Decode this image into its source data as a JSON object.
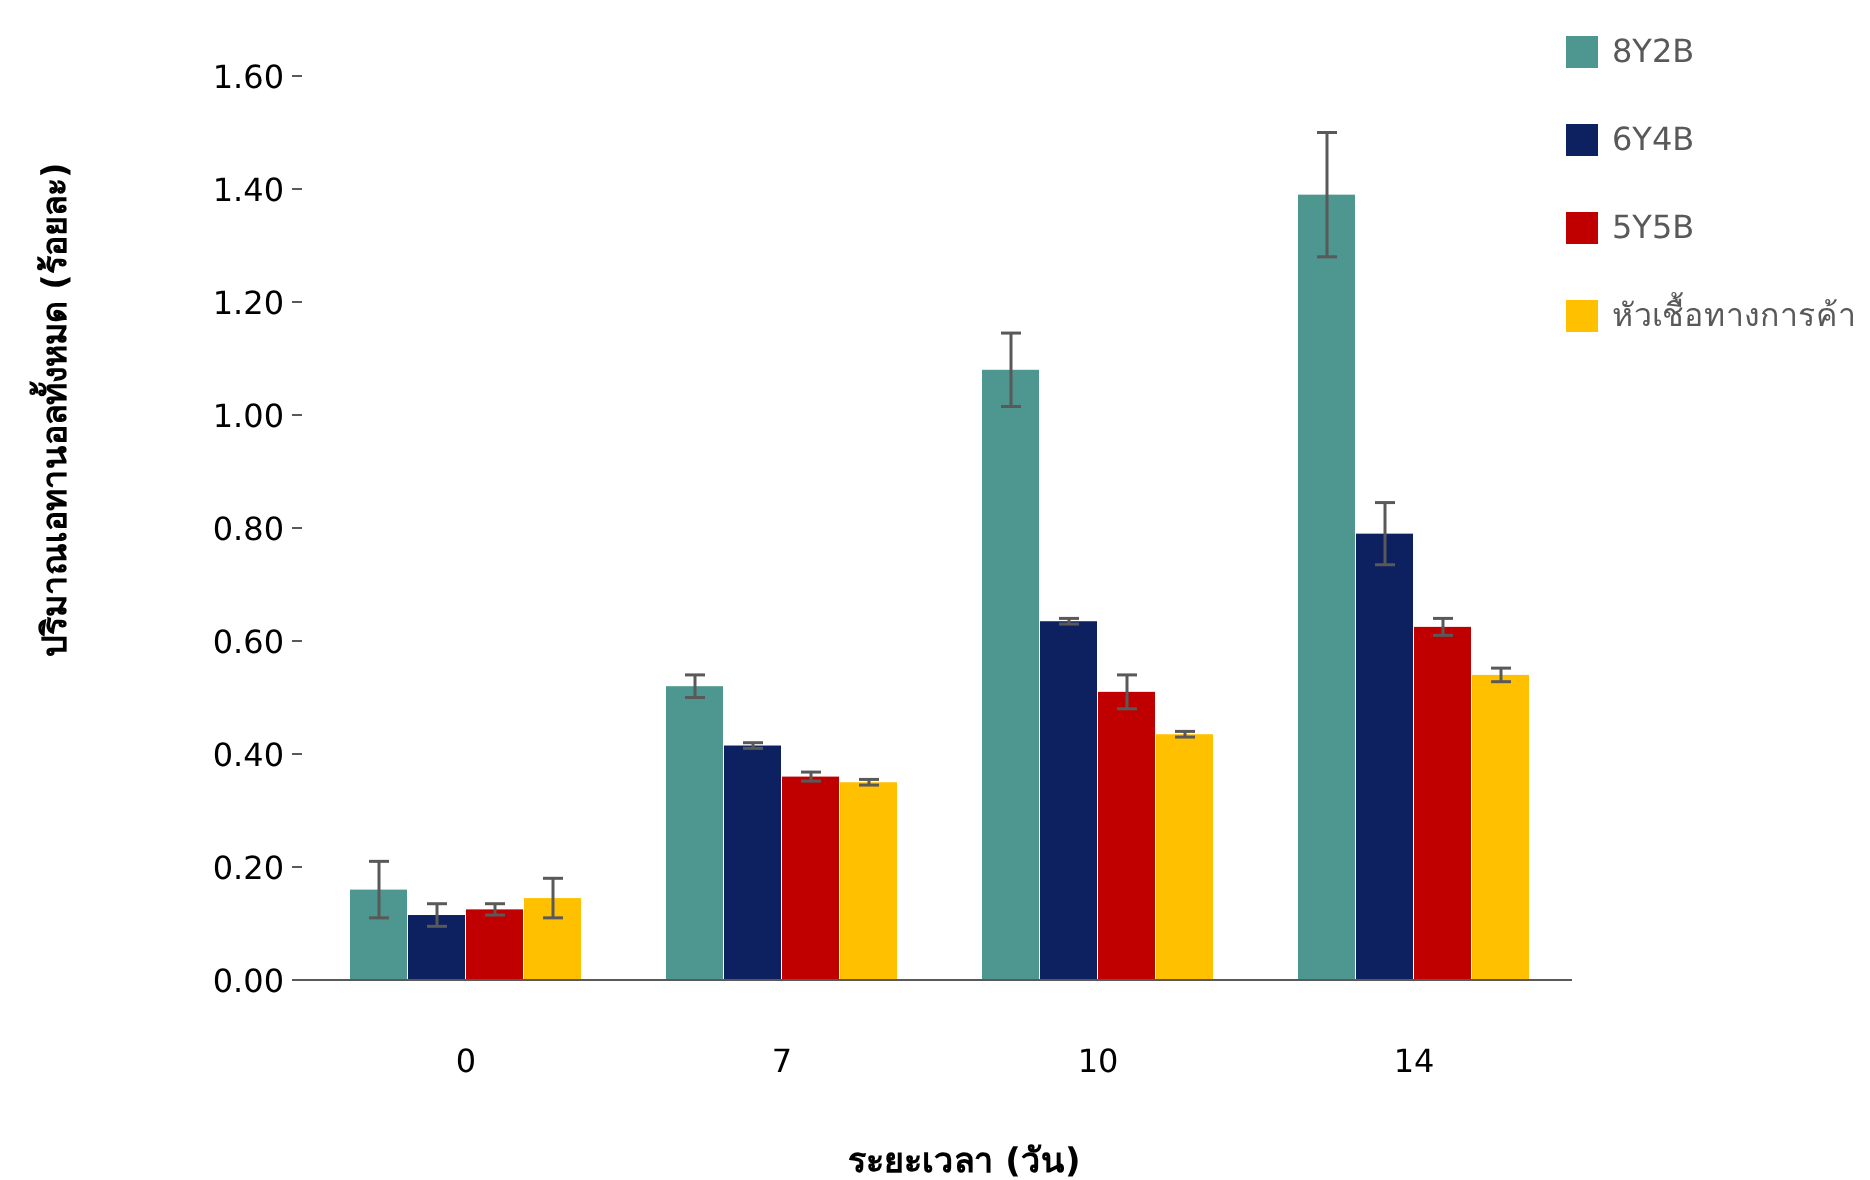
{
  "chart_data": {
    "type": "bar",
    "xlabel": "ระยะเวลา (วัน)",
    "ylabel": "ปริมาณเอทานอลทั้งหมด (ร้อยละ)",
    "categories": [
      "0",
      "7",
      "10",
      "14"
    ],
    "series": [
      {
        "name": "8Y2B",
        "color": "#4e9690",
        "values": [
          0.16,
          0.52,
          1.08,
          1.39
        ],
        "errors": [
          0.05,
          0.02,
          0.065,
          0.11
        ]
      },
      {
        "name": "6Y4B",
        "color": "#0d2160",
        "values": [
          0.115,
          0.415,
          0.635,
          0.79
        ],
        "errors": [
          0.02,
          0.005,
          0.005,
          0.055
        ]
      },
      {
        "name": "5Y5B",
        "color": "#c00000",
        "values": [
          0.125,
          0.36,
          0.51,
          0.625
        ],
        "errors": [
          0.01,
          0.008,
          0.03,
          0.015
        ]
      },
      {
        "name": "หัวเชื้อทางการค้า",
        "color": "#ffc000",
        "values": [
          0.145,
          0.35,
          0.435,
          0.54
        ],
        "errors": [
          0.035,
          0.005,
          0.005,
          0.012
        ]
      }
    ],
    "ylim": [
      0,
      1.6
    ],
    "yticks": [
      {
        "value": 0,
        "label": "0.00"
      },
      {
        "value": 0.2,
        "label": "0.20"
      },
      {
        "value": 0.4,
        "label": "0.40"
      },
      {
        "value": 0.6,
        "label": "0.60"
      },
      {
        "value": 0.8,
        "label": "0.80"
      },
      {
        "value": 1.0,
        "label": "1.00"
      },
      {
        "value": 1.2,
        "label": "1.20"
      },
      {
        "value": 1.4,
        "label": "1.40"
      },
      {
        "value": 1.6,
        "label": "1.60"
      }
    ],
    "grid": false,
    "legend": "top right"
  }
}
